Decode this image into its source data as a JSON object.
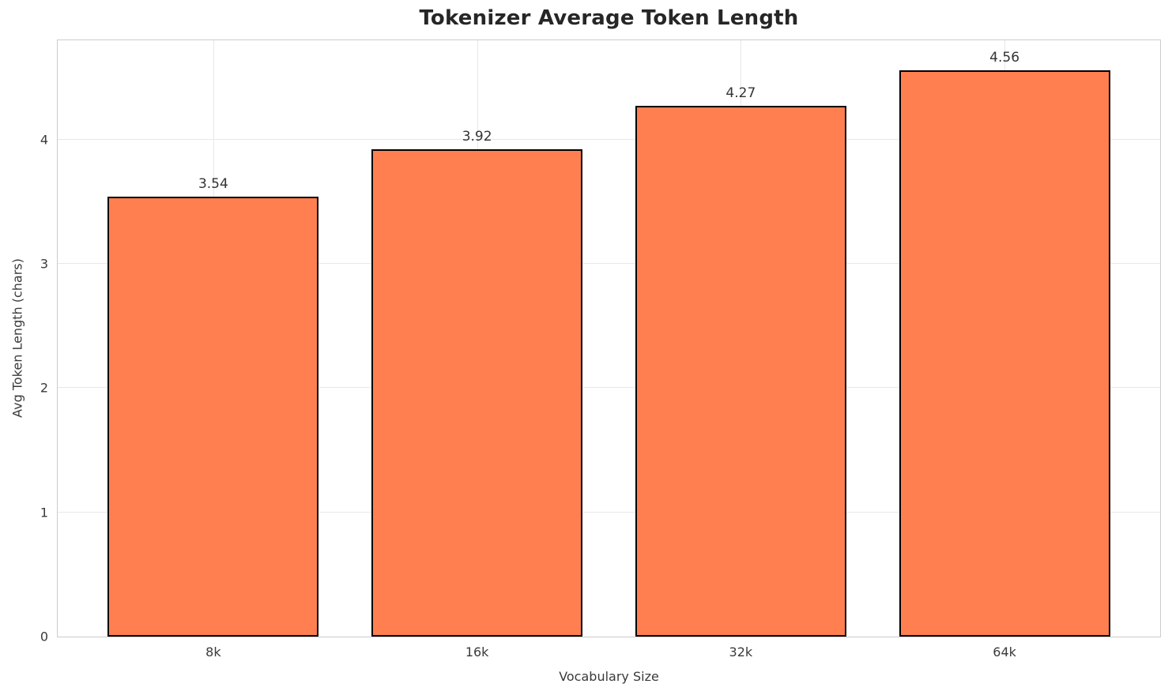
{
  "chart_data": {
    "type": "bar",
    "title": "Tokenizer Average Token Length",
    "categories": [
      "8k",
      "16k",
      "32k",
      "64k"
    ],
    "values": [
      3.54,
      3.92,
      4.27,
      4.56
    ],
    "value_labels": [
      "3.54",
      "3.92",
      "4.27",
      "4.56"
    ],
    "xlabel": "Vocabulary Size",
    "ylabel": "Avg Token Length (chars)",
    "ylim": [
      0,
      4.8
    ],
    "yticks": [
      0,
      1,
      2,
      3,
      4
    ],
    "ytick_labels": [
      "0",
      "1",
      "2",
      "3",
      "4"
    ],
    "grid": true,
    "legend": "none",
    "colors": {
      "bar_fill": "#FF7F50",
      "bar_edge": "#000000",
      "grid": "#e8e8e8",
      "spine": "#cccccc",
      "title_text": "#262626",
      "tick_text": "#3a3a3a",
      "background": "#ffffff"
    }
  }
}
